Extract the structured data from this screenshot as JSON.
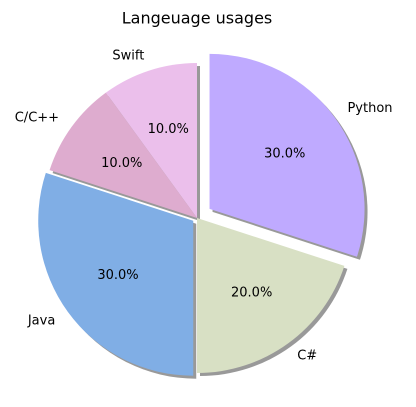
{
  "chart_data": {
    "type": "pie",
    "title": "Langeuage usages",
    "categories": [
      "Swift",
      "C/C++",
      "Java",
      "C#",
      "Python"
    ],
    "values": [
      10,
      10,
      30,
      20,
      30
    ],
    "value_labels": [
      "10.0%",
      "10.0%",
      "30.0%",
      "20.0%",
      "30.0%"
    ],
    "colors": [
      "#ebbfeb",
      "#deaccf",
      "#80aee5",
      "#d8e0c4",
      "#bfaaff"
    ],
    "explode": [
      0,
      0,
      0.03,
      0,
      0.1
    ],
    "start_angle": 90,
    "shadow": true
  }
}
